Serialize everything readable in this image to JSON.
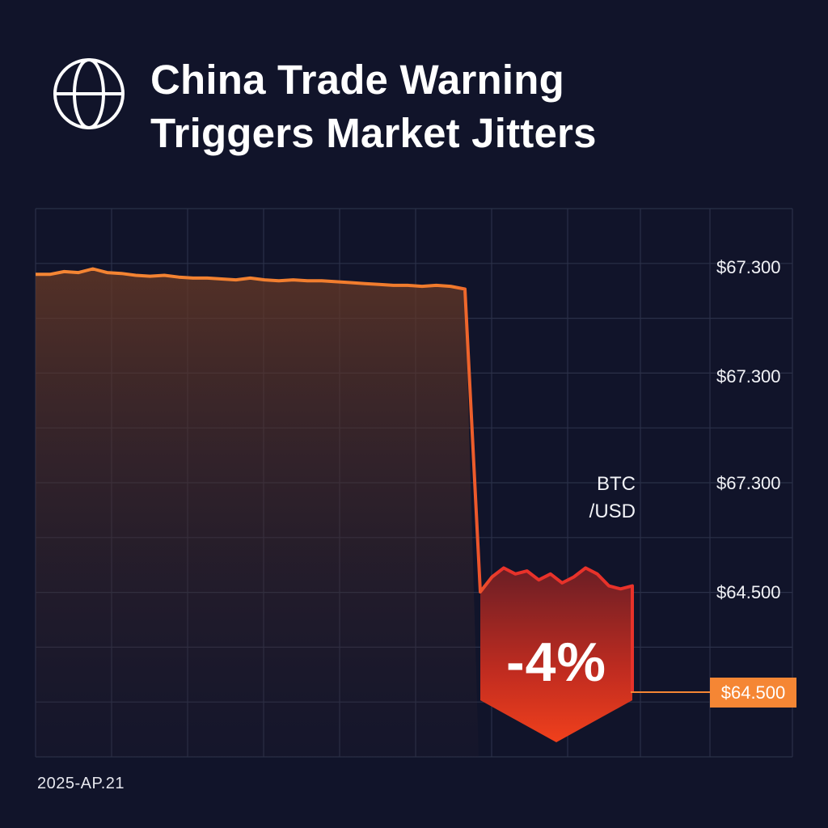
{
  "headline": {
    "line1": "China Trade Warning",
    "line2": "Triggers Market Jitters",
    "icon": "globe-icon"
  },
  "footer": {
    "date": "2025-AP.21"
  },
  "chart_data": {
    "type": "line",
    "pair_label_line1": "BTC",
    "pair_label_line2": "/USD",
    "y_tick_labels": [
      "$67.300",
      "$67.300",
      "$67.300",
      "$64.500"
    ],
    "current_price_label": "$64.500",
    "change_label": "-4%",
    "colors": {
      "line_before": "#f58634",
      "line_after": "#e8322a",
      "grid": "#2b3048",
      "background": "#11142a",
      "price_tag": "#f58634"
    },
    "series": [
      {
        "values": [
          67300,
          67300,
          67330,
          67320,
          67360,
          67320,
          67310,
          67290,
          67280,
          67290,
          67270,
          67260,
          67260,
          67250,
          67240,
          67260,
          67240,
          67230,
          67240,
          67230,
          67230,
          67220,
          67210,
          67200,
          67190,
          67180,
          67180,
          67170,
          67180,
          67170,
          67140,
          64500,
          64550,
          64580,
          64560,
          64570,
          64540,
          64560,
          64530,
          64550,
          64580,
          64560,
          64520,
          64510,
          64520
        ]
      }
    ]
  }
}
